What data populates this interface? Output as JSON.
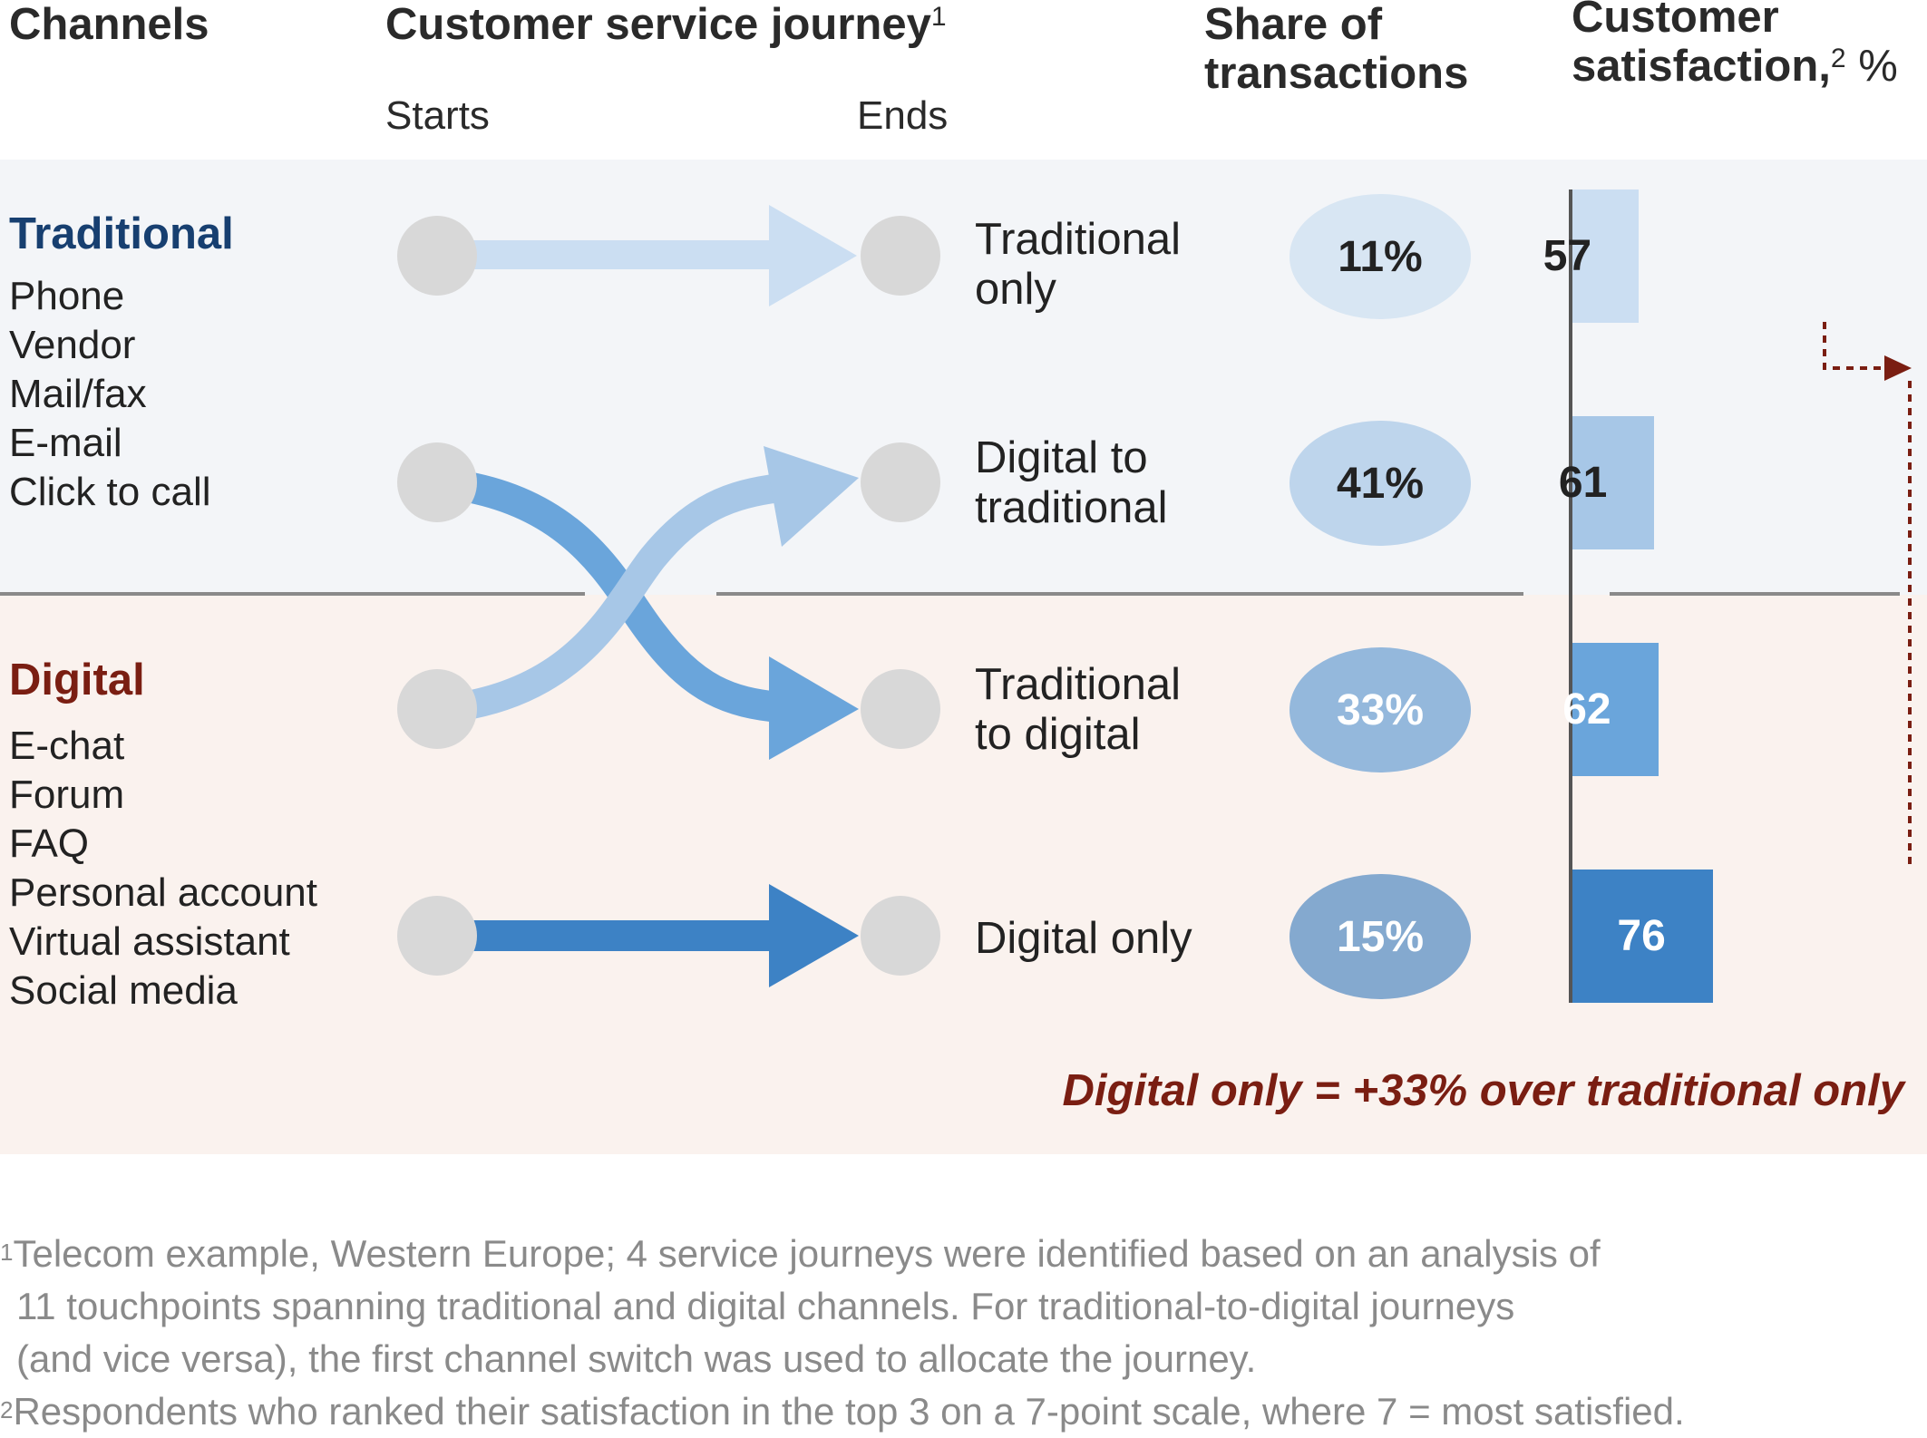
{
  "headers": {
    "channels": "Channels",
    "journey": "Customer service journey",
    "journey_mark": "1",
    "starts": "Starts",
    "ends": "Ends",
    "share_line1": "Share of",
    "share_line2": "transactions",
    "satisfaction_line1": "Customer",
    "satisfaction_line2": "satisfaction,",
    "satisfaction_mark": "2",
    "satisfaction_unit": " %"
  },
  "groups": {
    "traditional": {
      "title": "Traditional",
      "items": [
        "Phone",
        "Vendor",
        "Mail/fax",
        "E-mail",
        "Click to call"
      ]
    },
    "digital": {
      "title": "Digital",
      "items": [
        "E-chat",
        "Forum",
        "FAQ",
        "Personal account",
        "Virtual assistant",
        "Social media"
      ]
    }
  },
  "journeys": [
    {
      "line1": "Traditional",
      "line2": "only"
    },
    {
      "line1": "Digital to",
      "line2": "traditional"
    },
    {
      "line1": "Traditional",
      "line2": "to digital"
    },
    {
      "line1": "Digital only",
      "line2": ""
    }
  ],
  "chart_data": {
    "type": "bar",
    "orientation": "horizontal",
    "categories": [
      "Traditional only",
      "Digital to traditional",
      "Traditional to digital",
      "Digital only"
    ],
    "share_of_transactions": [
      "11%",
      "41%",
      "33%",
      "15%"
    ],
    "share_values": [
      11,
      41,
      33,
      15
    ],
    "satisfaction_values": [
      57,
      61,
      62,
      76
    ],
    "satisfaction_labels": [
      "57",
      "61",
      "62",
      "76"
    ],
    "callout": "Digital only = +33% over traditional only"
  },
  "colors": {
    "traditional_title": "#173f70",
    "digital_title": "#7a1e12",
    "bar_1": "#cbdef2",
    "bar_2": "#a7c7e7",
    "bar_3": "#6aa5db",
    "bar_4": "#3d82c5",
    "oval_1": "#d8e6f3",
    "oval_2": "#bed5ec",
    "oval_3": "#94b8dc",
    "oval_4": "#84a9cf",
    "node": "#d8d8d8",
    "callout_arrow": "#7a1e12"
  },
  "footnotes": {
    "n1_mark": "1",
    "n1_line1": "Telecom example, Western Europe; 4 service journeys were identified based on an analysis of",
    "n1_line2": "11 touchpoints spanning traditional and digital channels. For traditional-to-digital journeys",
    "n1_line3": "(and vice versa), the first channel switch was used to allocate the journey.",
    "n2_mark": "2",
    "n2_line1": "Respondents who ranked their satisfaction in the top 3 on a 7-point scale, where 7 = most satisfied."
  }
}
